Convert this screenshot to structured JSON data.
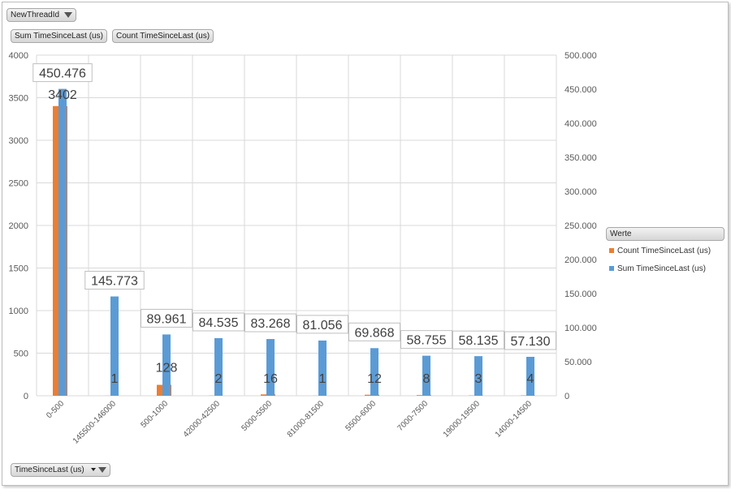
{
  "filters": {
    "thread_filter": "NewThreadId",
    "axis_filter": "TimeSinceLast (us)"
  },
  "value_buttons": [
    "Sum TimeSinceLast (us)",
    "Count TimeSinceLast (us)"
  ],
  "legend": {
    "title": "Werte",
    "items": [
      {
        "label": "Count TimeSinceLast (us)",
        "color": "#ED7D31"
      },
      {
        "label": "Sum TimeSinceLast (us)",
        "color": "#5B9BD5"
      }
    ]
  },
  "chart_data": {
    "type": "bar",
    "categories": [
      "0-500",
      "145500-146000",
      "500-1000",
      "42000-42500",
      "5000-5500",
      "81000-81500",
      "5500-6000",
      "7000-7500",
      "19000-19500",
      "14000-14500"
    ],
    "series": [
      {
        "name": "Count TimeSinceLast (us)",
        "axis": "left",
        "color": "#ED7D31",
        "values": [
          3402,
          1,
          128,
          2,
          16,
          1,
          12,
          8,
          3,
          4
        ],
        "labels": [
          "3402",
          "1",
          "128",
          "2",
          "16",
          "1",
          "12",
          "8",
          "3",
          "4"
        ]
      },
      {
        "name": "Sum TimeSinceLast (us)",
        "axis": "right",
        "color": "#5B9BD5",
        "values": [
          450476,
          145773,
          89961,
          84535,
          83268,
          81056,
          69868,
          58755,
          58135,
          57130
        ],
        "labels": [
          "450.476",
          "145.773",
          "89.961",
          "84.535",
          "83.268",
          "81.056",
          "69.868",
          "58.755",
          "58.135",
          "57.130"
        ]
      }
    ],
    "y_left": {
      "min": 0,
      "max": 4000,
      "ticks": [
        "0",
        "500",
        "1000",
        "1500",
        "2000",
        "2500",
        "3000",
        "3500",
        "4000"
      ]
    },
    "y_right": {
      "min": 0,
      "max": 500000,
      "ticks": [
        "0",
        "50.000",
        "100.000",
        "150.000",
        "200.000",
        "250.000",
        "300.000",
        "350.000",
        "400.000",
        "450.000",
        "500.000"
      ]
    },
    "grid": true,
    "legend_position": "right"
  }
}
